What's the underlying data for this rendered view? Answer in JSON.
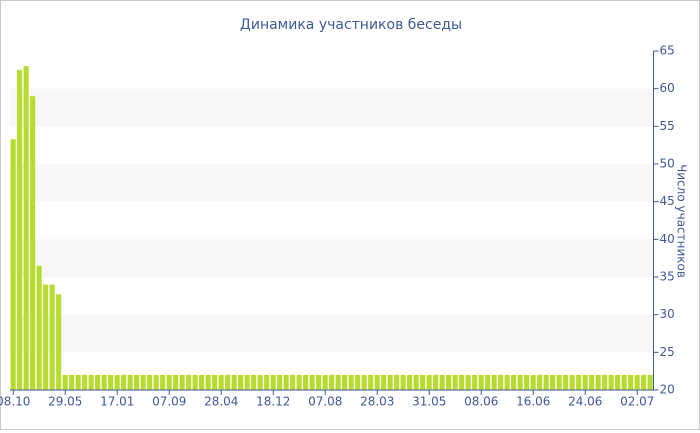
{
  "chart_data": {
    "type": "bar",
    "title": "Динамика участников беседы",
    "y_label": "Число участников",
    "categories": [
      "08.10",
      null,
      null,
      null,
      null,
      null,
      null,
      null,
      "29.05",
      null,
      null,
      null,
      null,
      null,
      null,
      null,
      "17.01",
      null,
      null,
      null,
      null,
      null,
      null,
      null,
      "07.09",
      null,
      null,
      null,
      null,
      null,
      null,
      null,
      "28.04",
      null,
      null,
      null,
      null,
      null,
      null,
      null,
      "18.12",
      null,
      null,
      null,
      null,
      null,
      null,
      null,
      "07.08",
      null,
      null,
      null,
      null,
      null,
      null,
      null,
      "28.03",
      null,
      null,
      null,
      null,
      null,
      null,
      null,
      "31.05",
      null,
      null,
      null,
      null,
      null,
      null,
      null,
      "08.06",
      null,
      null,
      null,
      null,
      null,
      null,
      null,
      "16.06",
      null,
      null,
      null,
      null,
      null,
      null,
      null,
      "24.06",
      null,
      null,
      null,
      null,
      null,
      null,
      null,
      "02.07",
      null,
      null
    ],
    "values": [
      53.3,
      62.5,
      63,
      59,
      36.5,
      34,
      34,
      32.7,
      22,
      22,
      22,
      22,
      22,
      22,
      22,
      22,
      22,
      22,
      22,
      22,
      22,
      22,
      22,
      22,
      22,
      22,
      22,
      22,
      22,
      22,
      22,
      22,
      22,
      22,
      22,
      22,
      22,
      22,
      22,
      22,
      22,
      22,
      22,
      22,
      22,
      22,
      22,
      22,
      22,
      22,
      22,
      22,
      22,
      22,
      22,
      22,
      22,
      22,
      22,
      22,
      22,
      22,
      22,
      22,
      22,
      22,
      22,
      22,
      22,
      22,
      22,
      22,
      22,
      22,
      22,
      22,
      22,
      22,
      22,
      22,
      22,
      22,
      22,
      22,
      22,
      22,
      22,
      22,
      22,
      22,
      22,
      22,
      22,
      22,
      22,
      22,
      22,
      22,
      22
    ],
    "color": "#b5dc2e",
    "ylim": [
      20,
      65
    ],
    "yticks": [
      20,
      25,
      30,
      35,
      40,
      45,
      50,
      55,
      60,
      65
    ],
    "y_axis_side": "right",
    "alt_bands": true
  }
}
